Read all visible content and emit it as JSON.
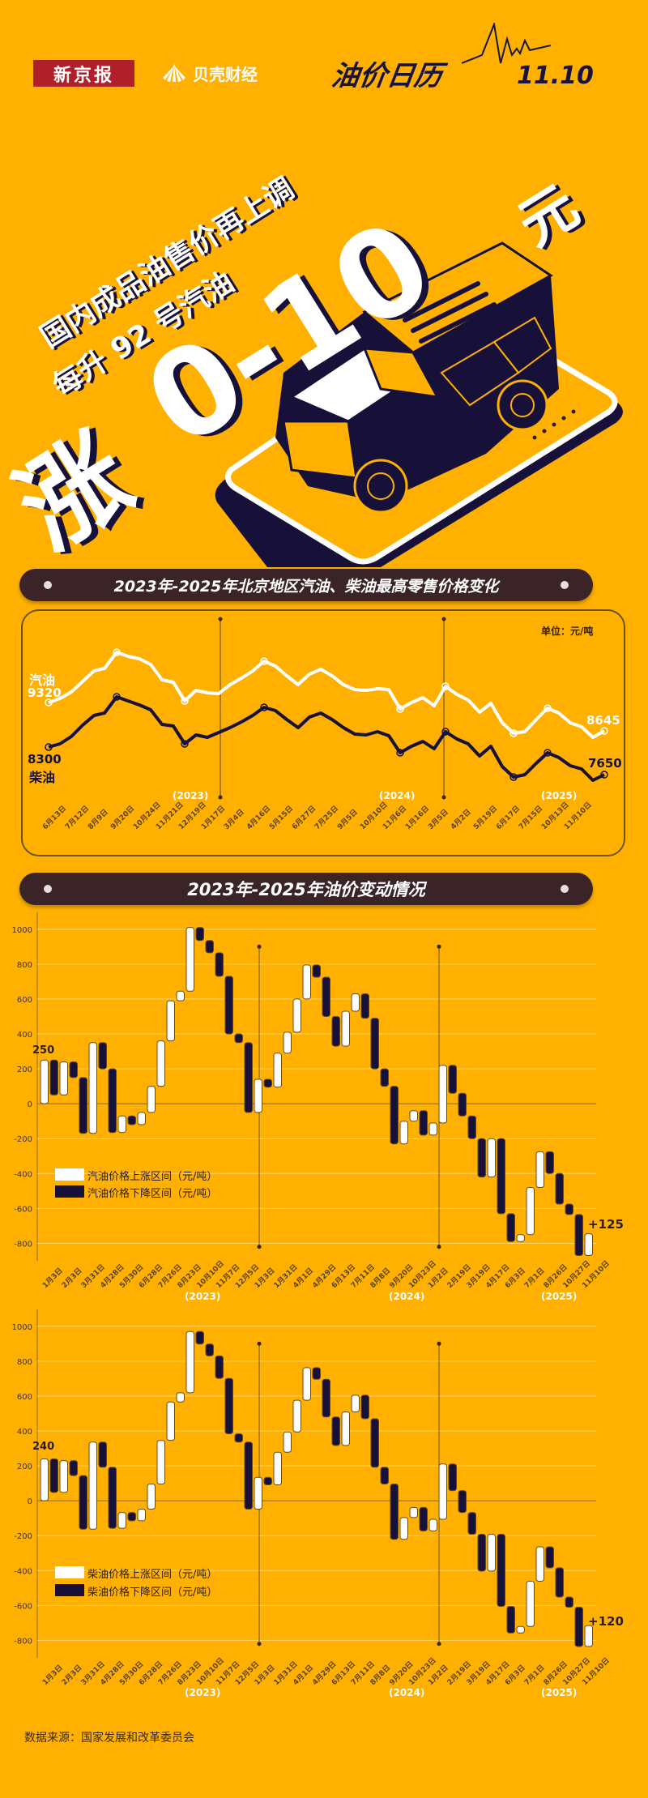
{
  "header": {
    "logo_xjb": "新京报",
    "logo_bk": "贝壳财经",
    "calendar_title": "油价日历",
    "calendar_date": "11.10"
  },
  "hero": {
    "line1": "国内成品油售价再上调",
    "line2": "每升 92 号汽油",
    "big_prefix": "涨",
    "big_amount": "0-10",
    "big_unit": "元"
  },
  "section1": {
    "title": "2023年-2025年北京地区汽油、柴油最高零售价格变化"
  },
  "section2": {
    "title": "2023年-2025年油价变动情况"
  },
  "line_chart": {
    "unit": "单位：元/吨",
    "gas_label": "汽油",
    "gas_start": "9320",
    "gas_end": "8645",
    "diesel_label": "柴油",
    "diesel_start": "8300",
    "diesel_end": "7650",
    "year_labels": [
      "(2023)",
      "(2024)",
      "(2025)"
    ]
  },
  "bar_chart_gas": {
    "start_label": "250",
    "end_label": "+125",
    "legend_up": "汽油价格上涨区间（元/吨）",
    "legend_down": "汽油价格下降区间（元/吨）",
    "year_labels": [
      "(2023)",
      "(2024)",
      "(2025)"
    ]
  },
  "bar_chart_diesel": {
    "start_label": "240",
    "end_label": "+120",
    "legend_up": "柴油价格上涨区间（元/吨）",
    "legend_down": "柴油价格下降区间（元/吨）",
    "year_labels": [
      "(2023)",
      "(2024)",
      "(2025)"
    ]
  },
  "footer": {
    "source": "数据来源：国家发展和改革委员会"
  },
  "colors": {
    "background": "#FFB000",
    "dark": "#17113a",
    "white": "#FFFFFF",
    "section_bar": "#3a2428"
  },
  "chart_data": [
    {
      "type": "line",
      "title": "2023年-2025年北京地区汽油、柴油最高零售价格变化",
      "ylabel": "元/吨",
      "x": [
        "6月13日",
        "7月12日",
        "8月9日",
        "9月20日",
        "10月24日",
        "11月21日",
        "12月19日",
        "1月17日",
        "3月4日",
        "4月16日",
        "5月15日",
        "6月27日",
        "7月25日",
        "9月5日",
        "10月10日",
        "11月6日",
        "1月16日",
        "3月5日",
        "4月2日",
        "5月19日",
        "6月17日",
        "7月15日",
        "10月13日",
        "11月10日"
      ],
      "series": [
        {
          "name": "汽油",
          "start": 9320,
          "end": 8645,
          "color": "#FFFFFF",
          "values": [
            9320,
            9340,
            9420,
            9560,
            9700,
            9740,
            9900,
            9850,
            9820,
            9760,
            9620,
            9610,
            9450,
            9540,
            9480,
            9480,
            9580,
            9640,
            9720,
            9820,
            9860,
            9790,
            9760,
            9680,
            9620,
            9740,
            9700,
            9780,
            9830,
            9760,
            9700,
            9640,
            9600,
            9620,
            9540,
            9540,
            9470,
            9430,
            9440,
            9500,
            9470,
            9520,
            9540,
            9600,
            9560,
            9520,
            9460,
            9550,
            9430,
            9360,
            9380,
            9460,
            9540,
            9520,
            9460,
            9440,
            9400,
            9350,
            9370,
            8645
          ]
        },
        {
          "name": "柴油",
          "start": 8300,
          "end": 7650,
          "color": "#17113a",
          "values": [
            8300,
            8320,
            8390,
            8520,
            8640,
            8660,
            8860,
            8820,
            8800,
            8740,
            8600,
            8590,
            8430,
            8520,
            8460,
            8460,
            8560,
            8620,
            8700,
            8800,
            8840,
            8770,
            8740,
            8660,
            8600,
            8720,
            8680,
            8760,
            8810,
            8740,
            8680,
            8620,
            8580,
            8600,
            8520,
            8520,
            8450,
            8410,
            8420,
            8480,
            8450,
            8500,
            8520,
            8580,
            8540,
            8500,
            8440,
            8530,
            8410,
            8340,
            8360,
            8440,
            8520,
            8500,
            8440,
            8420,
            8380,
            8330,
            8350,
            7650
          ]
        }
      ],
      "annotations": [
        "(2023)",
        "(2024)",
        "(2025)",
        "单位：元/吨"
      ]
    },
    {
      "type": "bar",
      "subtype": "floating-range (waterfall)",
      "title": "汽油价格变动区间",
      "ylim": [
        -900,
        1050
      ],
      "yticks": [
        -800,
        -600,
        -400,
        -200,
        0,
        200,
        400,
        600,
        800,
        1000
      ],
      "categories": [
        "1月3日",
        "2月3日",
        "3月31日",
        "4月28日",
        "5月30日",
        "6月28日",
        "7月26日",
        "8月23日",
        "10月10日",
        "11月7日",
        "12月5日",
        "1月3日",
        "1月31日",
        "4月1日",
        "4月29日",
        "6月13日",
        "7月11日",
        "8月8日",
        "9月20日",
        "10月23日",
        "1月2日",
        "2月19日",
        "3月19日",
        "4月17日",
        "6月3日",
        "7月1日",
        "8月26日",
        "10月27日",
        "11月10日"
      ],
      "ranges": [
        [
          0,
          250,
          "up"
        ],
        [
          250,
          50,
          "down"
        ],
        [
          50,
          240,
          "up"
        ],
        [
          240,
          150,
          "down"
        ],
        [
          150,
          -170,
          "down"
        ],
        [
          -170,
          350,
          "up"
        ],
        [
          350,
          200,
          "down"
        ],
        [
          200,
          -165,
          "down"
        ],
        [
          -165,
          -70,
          "up"
        ],
        [
          -70,
          -120,
          "down"
        ],
        [
          -120,
          -50,
          "up"
        ],
        [
          -50,
          100,
          "up"
        ],
        [
          100,
          360,
          "up"
        ],
        [
          360,
          590,
          "up"
        ],
        [
          590,
          645,
          "up"
        ],
        [
          645,
          1010,
          "up"
        ],
        [
          1010,
          935,
          "down"
        ],
        [
          935,
          865,
          "down"
        ],
        [
          865,
          730,
          "down"
        ],
        [
          730,
          400,
          "down"
        ],
        [
          400,
          350,
          "down"
        ],
        [
          350,
          -50,
          "down"
        ],
        [
          -50,
          140,
          "up"
        ],
        [
          140,
          95,
          "down"
        ],
        [
          95,
          290,
          "up"
        ],
        [
          290,
          410,
          "up"
        ],
        [
          410,
          600,
          "up"
        ],
        [
          600,
          795,
          "up"
        ],
        [
          795,
          725,
          "down"
        ],
        [
          725,
          500,
          "down"
        ],
        [
          500,
          330,
          "down"
        ],
        [
          330,
          530,
          "up"
        ],
        [
          530,
          630,
          "up"
        ],
        [
          630,
          490,
          "down"
        ],
        [
          490,
          200,
          "down"
        ],
        [
          200,
          100,
          "down"
        ],
        [
          100,
          -230,
          "down"
        ],
        [
          -230,
          -100,
          "up"
        ],
        [
          -100,
          -40,
          "up"
        ],
        [
          -40,
          -180,
          "down"
        ],
        [
          -180,
          -110,
          "up"
        ],
        [
          -110,
          220,
          "up"
        ],
        [
          220,
          60,
          "down"
        ],
        [
          60,
          -70,
          "down"
        ],
        [
          -70,
          -200,
          "down"
        ],
        [
          -200,
          -420,
          "down"
        ],
        [
          -420,
          -200,
          "up"
        ],
        [
          -200,
          -630,
          "down"
        ],
        [
          -630,
          -790,
          "down"
        ],
        [
          -790,
          -750,
          "up"
        ],
        [
          -750,
          -480,
          "up"
        ],
        [
          -480,
          -275,
          "up"
        ],
        [
          -275,
          -400,
          "down"
        ],
        [
          -400,
          -575,
          "down"
        ],
        [
          -575,
          -635,
          "down"
        ],
        [
          -635,
          -870,
          "down"
        ],
        [
          -870,
          -745,
          "up"
        ]
      ],
      "start_label": 250,
      "end_label": "+125",
      "legend": [
        "汽油价格上涨区间（元/吨）",
        "汽油价格下降区间（元/吨）"
      ]
    },
    {
      "type": "bar",
      "subtype": "floating-range (waterfall)",
      "title": "柴油价格变动区间",
      "ylim": [
        -900,
        1050
      ],
      "yticks": [
        -800,
        -600,
        -400,
        -200,
        0,
        200,
        400,
        600,
        800,
        1000
      ],
      "categories": [
        "1月3日",
        "2月3日",
        "3月31日",
        "4月28日",
        "5月30日",
        "6月28日",
        "7月26日",
        "8月23日",
        "10月10日",
        "11月7日",
        "12月5日",
        "1月3日",
        "1月31日",
        "4月1日",
        "4月29日",
        "6月13日",
        "7月11日",
        "8月8日",
        "9月20日",
        "10月23日",
        "1月2日",
        "2月19日",
        "3月19日",
        "4月17日",
        "6月3日",
        "7月1日",
        "8月26日",
        "10月27日",
        "11月10日"
      ],
      "start_label": 240,
      "end_label": "+120",
      "legend": [
        "柴油价格上涨区间（元/吨）",
        "柴油价格下降区间（元/吨）"
      ]
    }
  ]
}
